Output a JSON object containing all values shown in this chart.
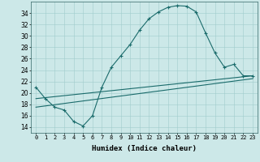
{
  "xlabel": "Humidex (Indice chaleur)",
  "bg_color": "#cce8e8",
  "line_color": "#1a6b6b",
  "xlim": [
    -0.5,
    23.5
  ],
  "ylim": [
    13,
    36
  ],
  "yticks": [
    14,
    16,
    18,
    20,
    22,
    24,
    26,
    28,
    30,
    32,
    34
  ],
  "xticks": [
    0,
    1,
    2,
    3,
    4,
    5,
    6,
    7,
    8,
    9,
    10,
    11,
    12,
    13,
    14,
    15,
    16,
    17,
    18,
    19,
    20,
    21,
    22,
    23
  ],
  "curve_x": [
    0,
    1,
    2,
    3,
    4,
    5,
    6,
    7,
    8,
    9,
    10,
    11,
    12,
    13,
    14,
    15,
    16,
    17,
    18,
    19,
    20,
    21,
    22,
    23
  ],
  "curve_y": [
    21,
    19,
    17.5,
    17,
    15,
    14.2,
    16,
    21,
    24.5,
    26.5,
    28.5,
    31,
    33,
    34.2,
    35,
    35.3,
    35.2,
    34.2,
    30.5,
    27,
    24.5,
    25,
    23,
    23
  ],
  "line2_x": [
    0,
    23
  ],
  "line2_y": [
    19,
    23
  ],
  "line3_x": [
    0,
    23
  ],
  "line3_y": [
    17.5,
    22.5
  ]
}
